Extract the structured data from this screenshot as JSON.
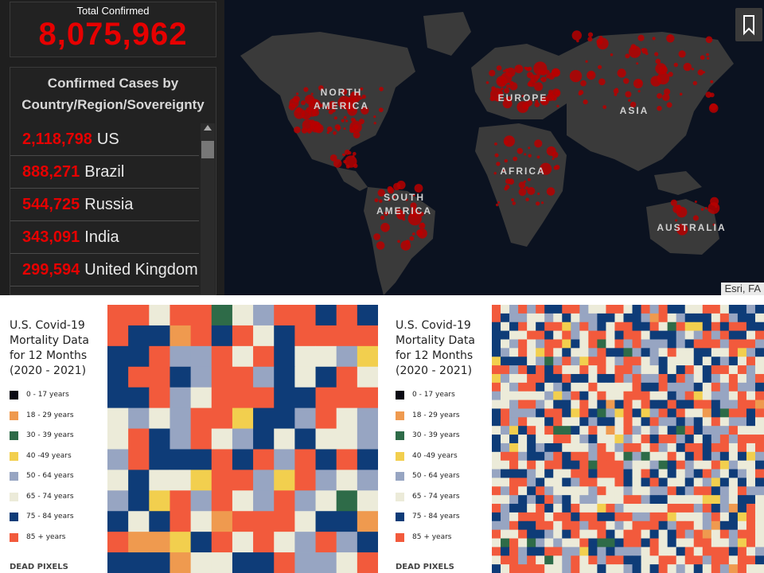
{
  "dashboard": {
    "total_label": "Total Confirmed",
    "total_value": "8,075,962",
    "cases_title": "Confirmed Cases by Country/Region/Sovereignty",
    "cases": [
      {
        "count": "2,118,798",
        "country": "US"
      },
      {
        "count": "888,271",
        "country": "Brazil"
      },
      {
        "count": "544,725",
        "country": "Russia"
      },
      {
        "count": "343,091",
        "country": "India"
      },
      {
        "count": "299,594",
        "country": "United Kingdom"
      }
    ],
    "map_regions": [
      "NORTH AMERICA",
      "EUROPE",
      "ASIA",
      "AFRICA",
      "SOUTH AMERICA",
      "AUSTRALIA"
    ],
    "credit": "Esri, FA",
    "icons": [
      "bookmark-icon",
      "scroll-up-icon"
    ],
    "colors": {
      "accent": "#e60000",
      "panel": "#222222",
      "map_bg": "#0b1220"
    }
  },
  "chart_data": [
    {
      "type": "heatmap",
      "title": "U.S. Covid-19 Mortality Data for 12 Months (2020 - 2021)",
      "legend": [
        {
          "label": "0 - 17 years",
          "color": "#0a0a14"
        },
        {
          "label": "18 - 29 years",
          "color": "#ef9a4f"
        },
        {
          "label": "30 - 39 years",
          "color": "#2e6b48"
        },
        {
          "label": "40 -49 years",
          "color": "#f2cf4e"
        },
        {
          "label": "50 - 64 years",
          "color": "#97a5c2"
        },
        {
          "label": "65 - 74 years",
          "color": "#ecebd9"
        },
        {
          "label": "75 - 84 years",
          "color": "#0e3c78"
        },
        {
          "label": "85 + years",
          "color": "#f25a3c"
        }
      ],
      "brand": "DEAD PIXELS",
      "grid": {
        "cols": 13,
        "rows": 13,
        "weights": [
          0,
          1,
          3,
          3,
          15,
          22,
          24,
          32
        ]
      }
    },
    {
      "type": "heatmap",
      "title": "U.S. Covid-19 Mortality Data for 12 Months (2020 - 2021)",
      "legend": [
        {
          "label": "0 - 17 years",
          "color": "#0a0a14"
        },
        {
          "label": "18 - 29 years",
          "color": "#ef9a4f"
        },
        {
          "label": "30 - 39 years",
          "color": "#2e6b48"
        },
        {
          "label": "40 -49 years",
          "color": "#f2cf4e"
        },
        {
          "label": "50 - 64 years",
          "color": "#97a5c2"
        },
        {
          "label": "65 - 74 years",
          "color": "#ecebd9"
        },
        {
          "label": "75 - 84 years",
          "color": "#0e3c78"
        },
        {
          "label": "85 + years",
          "color": "#f25a3c"
        }
      ],
      "brand": "DEAD PIXELS",
      "grid": {
        "cols": 31,
        "rows": 31,
        "weights": [
          0,
          1,
          2,
          3,
          18,
          26,
          20,
          30
        ]
      }
    }
  ]
}
